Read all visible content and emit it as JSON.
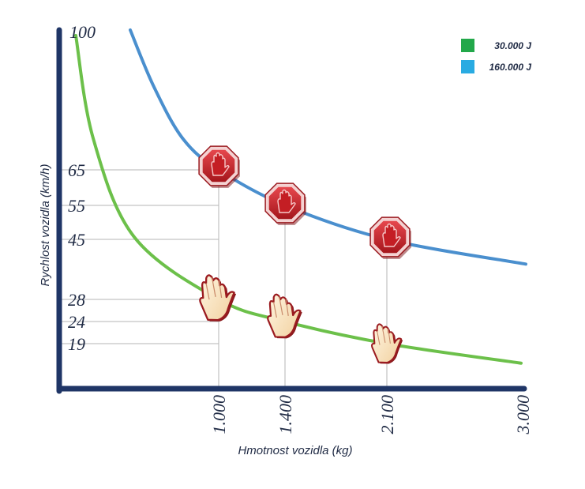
{
  "chart_data": {
    "type": "line",
    "xlabel": "Hmotnost vozidla (kg)",
    "ylabel": "Rychlost vozidla (km/h)",
    "x_tick_labels": [
      "1.000",
      "1.400",
      "2.100",
      "3.000"
    ],
    "x_ticks": [
      1000,
      1400,
      2100,
      3000
    ],
    "y_tick_labels": [
      "100",
      "65",
      "55",
      "45",
      "28",
      "24",
      "19"
    ],
    "y_ticks": [
      100,
      65,
      55,
      45,
      28,
      24,
      19
    ],
    "grid": "partial",
    "legend_position": "top-right",
    "series": [
      {
        "name": "30.000 J",
        "color": "#22a84a",
        "line_color": "#6cc04a",
        "x": [
          1000,
          1400,
          2100,
          3000
        ],
        "y": [
          28,
          24,
          19,
          16
        ],
        "marker": "hand-icon",
        "marked_points": [
          1000,
          1400,
          2100
        ]
      },
      {
        "name": "160.000 J",
        "color": "#29abe2",
        "line_color": "#4a8fce",
        "x": [
          1000,
          1400,
          2100,
          3000
        ],
        "y": [
          65,
          55,
          45,
          38
        ],
        "marker": "stop-sign-icon",
        "marked_points": [
          1000,
          1400,
          2100
        ]
      }
    ]
  }
}
